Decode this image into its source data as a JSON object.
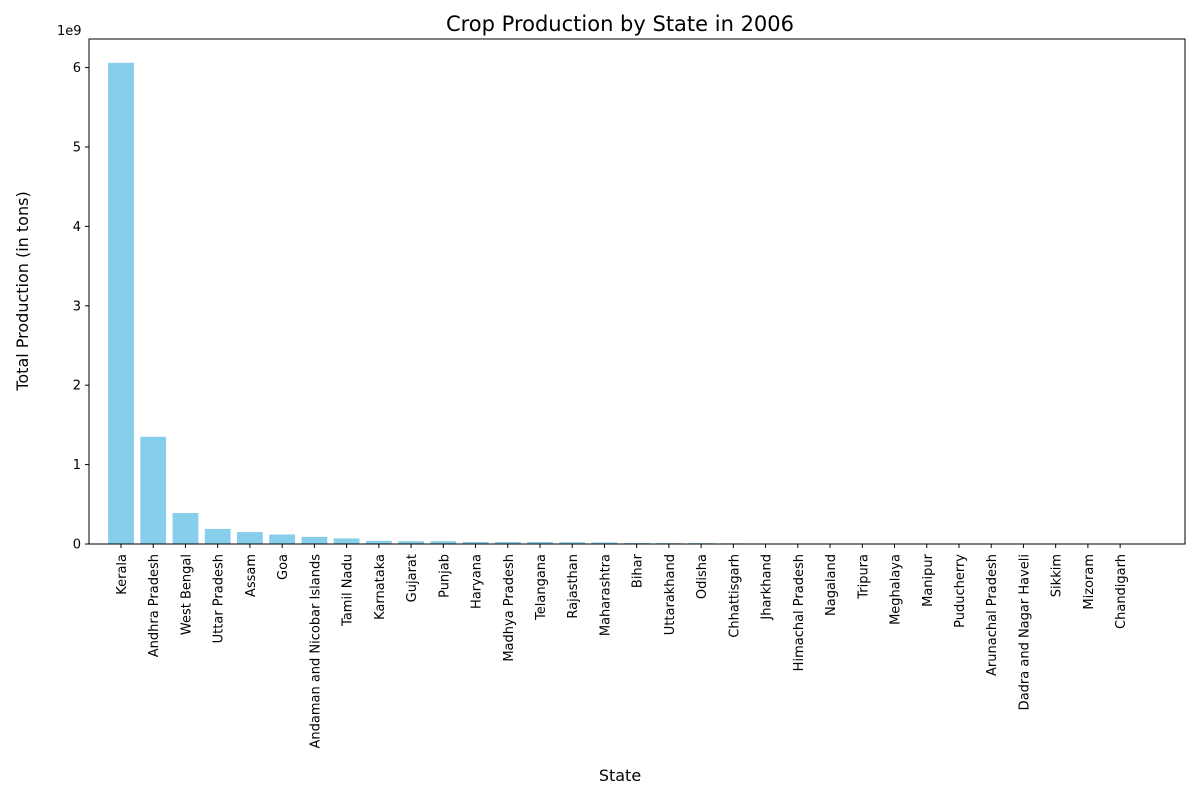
{
  "chart_data": {
    "type": "bar",
    "title": "Crop Production by State in 2006",
    "xlabel": "State",
    "ylabel": "Total Production (in tons)",
    "y_scale_label": "1e9",
    "ylim": [
      0,
      6.36
    ],
    "yticks": [
      0,
      1,
      2,
      3,
      4,
      5,
      6
    ],
    "value_unit": "1e9 tons",
    "bar_color": "#87CEEB",
    "grid": false,
    "categories": [
      "Kerala",
      "Andhra Pradesh",
      "West Bengal",
      "Uttar Pradesh",
      "Assam",
      "Goa",
      "Andaman and Nicobar Islands",
      "Tamil Nadu",
      "Karnataka",
      "Gujarat",
      "Punjab",
      "Haryana",
      "Madhya Pradesh",
      "Telangana",
      "Rajasthan",
      "Maharashtra",
      "Bihar",
      "Uttarakhand",
      "Odisha",
      "Chhattisgarh",
      "Jharkhand",
      "Himachal Pradesh",
      "Nagaland",
      "Tripura",
      "Meghalaya",
      "Manipur",
      "Puducherry",
      "Arunachal Pradesh",
      "Dadra and Nagar Haveli",
      "Sikkim",
      "Mizoram",
      "Chandigarh"
    ],
    "values": [
      6.06,
      1.35,
      0.39,
      0.19,
      0.15,
      0.12,
      0.09,
      0.07,
      0.04,
      0.035,
      0.035,
      0.025,
      0.025,
      0.025,
      0.022,
      0.02,
      0.012,
      0.01,
      0.01,
      0.008,
      0.004,
      0.003,
      0.002,
      0.002,
      0.001,
      0.001,
      0.001,
      0.001,
      0.0005,
      0.0005,
      0.0003,
      0.0002
    ]
  }
}
